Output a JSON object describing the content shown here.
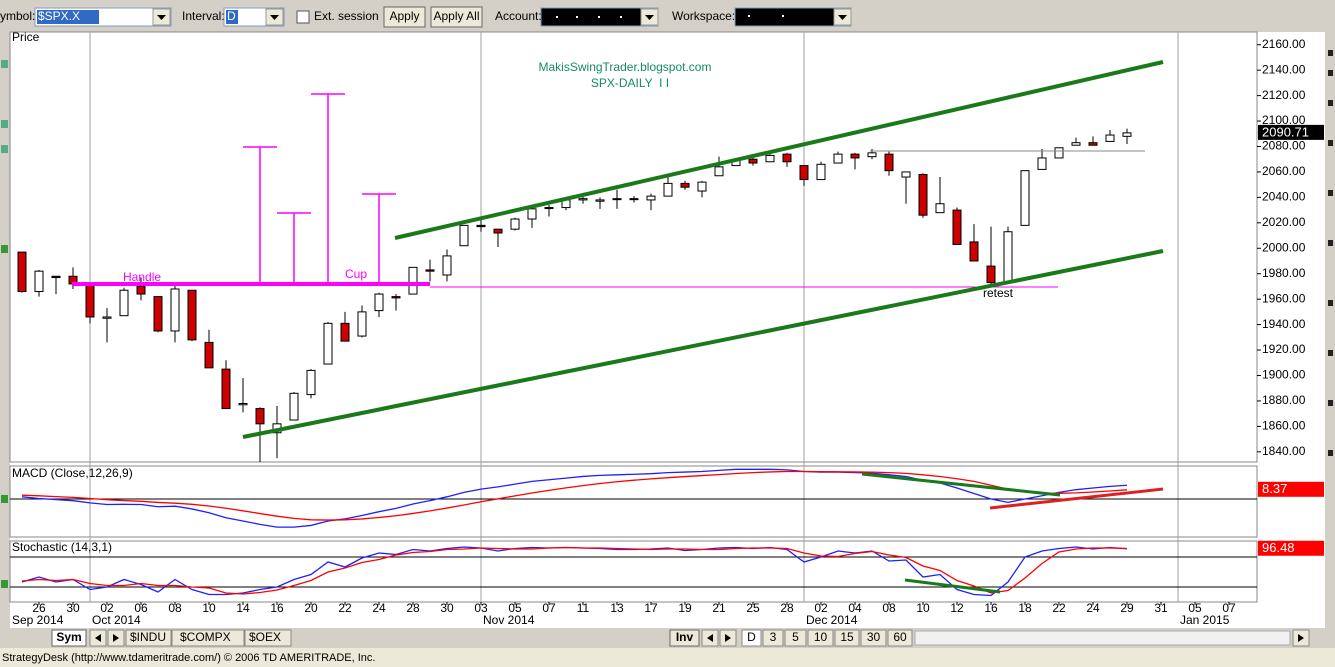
{
  "toolbar": {
    "symbol_label": "ymbol:",
    "symbol": "$SPX.X",
    "interval_label": "Interval:",
    "interval": "D",
    "ext_session": "Ext. session",
    "apply": "Apply",
    "apply_all": "Apply All",
    "account_label": "Account:",
    "workspace_label": "Workspace:"
  },
  "bottom_bar": {
    "sym": "Sym",
    "symbols": [
      "$INDU",
      "$COMPX",
      "$OEX"
    ],
    "inv": "Inv",
    "intervals": [
      "D",
      "3",
      "5",
      "10",
      "15",
      "30",
      "60"
    ]
  },
  "status": "StrategyDesk (http://www.tdameritrade.com/) © 2006 TD AMERITRADE, Inc.",
  "chart_data": [
    {
      "type": "candlestick",
      "title": "Price",
      "categories": [
        null,
        "26",
        null,
        "30",
        null,
        "02",
        null,
        "06",
        null,
        "08",
        null,
        "10",
        null,
        "14",
        null,
        "16",
        null,
        "20",
        null,
        "22",
        null,
        "24",
        null,
        "28",
        null,
        "30",
        null,
        "03",
        null,
        "05",
        null,
        "07",
        null,
        "11",
        null,
        "13",
        null,
        "17",
        null,
        "19",
        null,
        "21",
        null,
        "25",
        null,
        "28",
        null,
        "02",
        null,
        "04",
        null,
        "08",
        null,
        "10",
        null,
        "12",
        null,
        "16",
        null,
        "18",
        null,
        "22",
        null,
        "24",
        null,
        "29",
        null,
        "31",
        null,
        "05",
        null,
        "07",
        null
      ],
      "month_labels": [
        "Sep 2014",
        "Oct 2014",
        "Nov 2014",
        "Dec 2014",
        "Jan 2015"
      ],
      "open": [
        1997,
        1966,
        1978,
        1978,
        1971,
        1945,
        1947,
        1970,
        1962,
        1935,
        1967,
        1926,
        1905,
        1877,
        1874,
        1855,
        1865,
        1885,
        1909,
        1941,
        1931,
        1951,
        1962,
        1964,
        1983,
        1979,
        2002,
        2018,
        2015,
        2015,
        2023,
        2032,
        2032,
        2038,
        2037,
        2039,
        2039,
        2038,
        2041,
        2051,
        2045,
        2057,
        2065,
        2070,
        2068,
        2074,
        2065,
        2054,
        2067,
        2074,
        2072,
        2074,
        2056,
        2058,
        2028,
        2030,
        2005,
        1986,
        1973,
        2018,
        2062,
        2071,
        2081,
        2083,
        2084,
        2088,
        null,
        null,
        null,
        null,
        null,
        null,
        null
      ],
      "high": [
        1997,
        1983,
        1978,
        1985,
        1971,
        1953,
        1969,
        1977,
        1962,
        1971,
        1967,
        1936,
        1912,
        1898,
        1875,
        1876,
        1887,
        1905,
        1942,
        1950,
        1955,
        1965,
        1964,
        1985,
        1991,
        1999,
        2018,
        2024,
        2015,
        2024,
        2031,
        2034,
        2038,
        2041,
        2040,
        2046,
        2041,
        2043,
        2056,
        2053,
        2053,
        2072,
        2071,
        2074,
        2074,
        2075,
        2065,
        2068,
        2076,
        2075,
        2078,
        2076,
        2060,
        2059,
        2056,
        2032,
        2019,
        2017,
        2017,
        2061,
        2078,
        2079,
        2087,
        2088,
        2093,
        2094,
        null,
        null,
        null,
        null,
        null,
        null,
        null
      ],
      "low": [
        1965,
        1962,
        1964,
        1968,
        1941,
        1926,
        1947,
        1959,
        1934,
        1926,
        1927,
        1906,
        1874,
        1871,
        1820,
        1835,
        1865,
        1882,
        1909,
        1927,
        1930,
        1946,
        1951,
        1964,
        1974,
        1974,
        2002,
        2013,
        2001,
        2014,
        2016,
        2025,
        2030,
        2035,
        2031,
        2031,
        2036,
        2030,
        2041,
        2046,
        2040,
        2057,
        2065,
        2065,
        2068,
        2064,
        2049,
        2054,
        2067,
        2062,
        2070,
        2057,
        2035,
        2024,
        2028,
        2003,
        1990,
        1972,
        1973,
        2018,
        2062,
        2071,
        2081,
        2081,
        2084,
        2082,
        null,
        null,
        null,
        null,
        null,
        null,
        null
      ],
      "close": [
        1966,
        1982,
        1977,
        1972,
        1946,
        1946,
        1967,
        1964,
        1935,
        1968,
        1928,
        1906,
        1874,
        1878,
        1862,
        1862,
        1886,
        1904,
        1941,
        1927,
        1950,
        1964,
        1961,
        1985,
        1982,
        1994,
        2018,
        2017,
        2012,
        2023,
        2031,
        2032,
        2038,
        2039,
        2038,
        2039,
        2039,
        2041,
        2051,
        2048,
        2052,
        2064,
        2069,
        2067,
        2073,
        2068,
        2054,
        2066,
        2074,
        2071,
        2075,
        2061,
        2060,
        2026,
        2035,
        2003,
        1990,
        1973,
        2013,
        2061,
        2071,
        2079,
        2083,
        2081,
        2089,
        2090.71,
        null,
        null,
        null,
        null,
        null,
        null,
        null
      ],
      "up_color": "#ffffff",
      "down_color": "#cc0000",
      "ylim": [
        1832,
        2170
      ],
      "yticks": [
        {
          "value": 1840,
          "label": "1840.00"
        },
        {
          "value": 1860,
          "label": "1860.00"
        },
        {
          "value": 1880,
          "label": "1880.00"
        },
        {
          "value": 1900,
          "label": "1900.00"
        },
        {
          "value": 1920,
          "label": "1920.00"
        },
        {
          "value": 1940,
          "label": "1940.00"
        },
        {
          "value": 1960,
          "label": "1960.00"
        },
        {
          "value": 1980,
          "label": "1980.00"
        },
        {
          "value": 2000,
          "label": "2000.00"
        },
        {
          "value": 2020,
          "label": "2020.00"
        },
        {
          "value": 2040,
          "label": "2040.00"
        },
        {
          "value": 2060,
          "label": "2060.00"
        },
        {
          "value": 2080,
          "label": "2080.00"
        },
        {
          "value": 2100,
          "label": "2100.00"
        },
        {
          "value": 2120,
          "label": "2120.00"
        },
        {
          "value": 2140,
          "label": "2140.00"
        },
        {
          "value": 2160,
          "label": "2160.00"
        }
      ],
      "annotations": [
        "Handle",
        "Cup",
        "retest"
      ],
      "watermark": [
        "MakisSwingTrader.blogspot.com",
        "SPX-DAILY  I I"
      ]
    },
    {
      "type": "line",
      "title": "MACD (Close,12,26,9)",
      "ylim": [
        -34.5,
        30
      ],
      "series": [
        {
          "color": "#1f1fff",
          "values": [
            2,
            0.5,
            -0.5,
            -1.5,
            -3.5,
            -5,
            -4.8,
            -5,
            -7,
            -6.5,
            -9,
            -12.5,
            -17,
            -20,
            -23,
            -25.5,
            -25.5,
            -24,
            -20,
            -18,
            -15,
            -11.5,
            -8.5,
            -4.5,
            -1.5,
            2,
            6,
            9,
            11,
            13.5,
            16,
            17.5,
            19,
            20.5,
            21.5,
            22,
            22.5,
            23,
            24,
            24.5,
            25,
            26,
            27,
            27,
            27,
            26.5,
            25,
            24.5,
            24.5,
            24,
            23.5,
            22,
            20.5,
            17,
            14.5,
            10,
            5,
            0,
            -3,
            0,
            3,
            6,
            8.5,
            10,
            11.5,
            12.5,
            null,
            null,
            null,
            null,
            null,
            null,
            null
          ]
        },
        {
          "color": "#ff0000",
          "values": [
            3.5,
            2.9,
            2.2,
            1.5,
            0.5,
            -0.6,
            -1.4,
            -2.1,
            -3.1,
            -3.8,
            -4.8,
            -6.3,
            -8.4,
            -10.7,
            -13.2,
            -15.6,
            -17.6,
            -18.9,
            -19.1,
            -18.9,
            -18.1,
            -16.8,
            -15.2,
            -13.1,
            -10.8,
            -8.2,
            -5.4,
            -2.5,
            0.2,
            2.9,
            5.5,
            7.9,
            10.1,
            12.2,
            14.1,
            15.7,
            17.1,
            18.3,
            19.4,
            20.4,
            21.3,
            22.2,
            23.2,
            24,
            24.6,
            25,
            25,
            24.9,
            24.8,
            24.6,
            24.4,
            24,
            23.3,
            22,
            20.5,
            18.4,
            16,
            12.5,
            9,
            6.5,
            5,
            5.2,
            5.6,
            6.4,
            7.3,
            8.37,
            null,
            null,
            null,
            null,
            null,
            null,
            null
          ]
        }
      ]
    },
    {
      "type": "line",
      "title": "Stochastic (14,3,1)",
      "ylim": [
        -10,
        112
      ],
      "levels": [
        80,
        20
      ],
      "series": [
        {
          "color": "#1f1fff",
          "values": [
            30,
            40,
            30,
            35,
            15,
            20,
            35,
            25,
            10,
            35,
            15,
            5,
            5,
            8,
            15,
            20,
            35,
            45,
            70,
            60,
            78,
            88,
            85,
            95,
            92,
            97,
            100,
            98,
            92,
            97,
            99,
            98,
            99,
            98,
            97,
            95,
            95,
            96,
            98,
            93,
            95,
            98,
            99,
            97,
            99,
            95,
            70,
            80,
            92,
            88,
            92,
            72,
            74,
            40,
            45,
            15,
            5,
            3,
            30,
            80,
            92,
            97,
            100,
            96,
            99,
            96.48,
            null,
            null,
            null,
            null,
            null,
            null,
            null
          ]
        },
        {
          "color": "#ff0000",
          "values": [
            32,
            35,
            33,
            35,
            27,
            23,
            23,
            27,
            23,
            23,
            20,
            18,
            8,
            6,
            9,
            14,
            23,
            33,
            50,
            58,
            69,
            75,
            84,
            89,
            91,
            95,
            96,
            98,
            97,
            96,
            96,
            98,
            99,
            98,
            98,
            97,
            96,
            95,
            96,
            96,
            95,
            95,
            97,
            98,
            98,
            97,
            88,
            82,
            81,
            87,
            91,
            84,
            79,
            62,
            53,
            33,
            22,
            8,
            13,
            38,
            67,
            90,
            96,
            98,
            98,
            97,
            null,
            null,
            null,
            null,
            null,
            null,
            null
          ]
        }
      ]
    }
  ]
}
